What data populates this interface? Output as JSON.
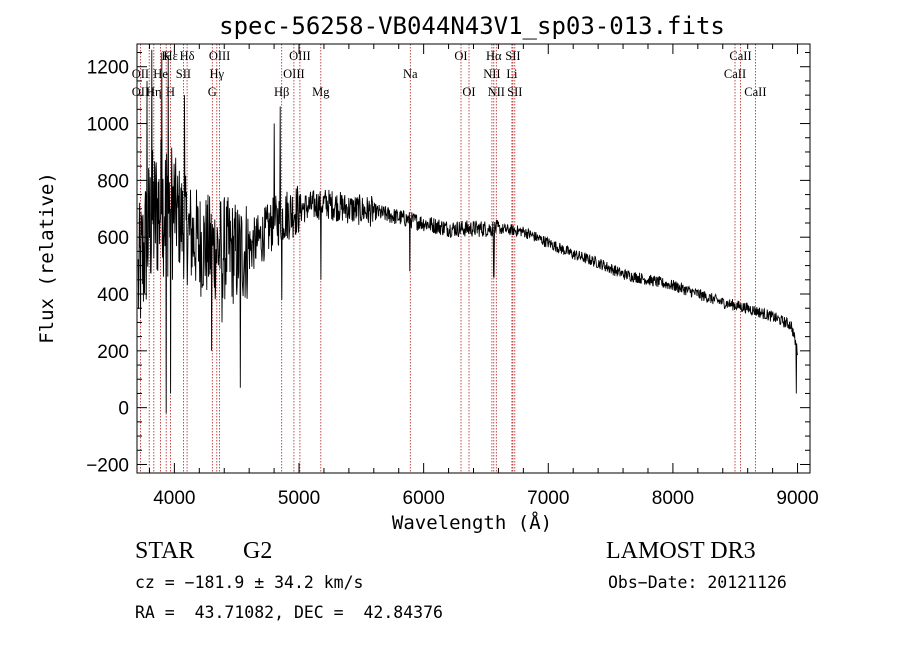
{
  "chart_data": {
    "type": "line",
    "title": "spec-56258-VB044N43V1_sp03-013.fits",
    "xlabel": "Wavelength (Å)",
    "ylabel": "Flux (relative)",
    "xlim": [
      3700,
      9100
    ],
    "ylim": [
      -230,
      1280
    ],
    "xticks": [
      4000,
      5000,
      6000,
      7000,
      8000,
      9000
    ],
    "yticks": [
      -200,
      0,
      200,
      400,
      600,
      800,
      1000,
      1200
    ],
    "series": [
      {
        "name": "spectrum",
        "continuum": {
          "x": [
            3700,
            3800,
            3900,
            4000,
            4100,
            4200,
            4300,
            4400,
            4500,
            4600,
            4700,
            4800,
            4900,
            5000,
            5200,
            5400,
            5600,
            5800,
            6000,
            6200,
            6400,
            6600,
            6800,
            7000,
            7200,
            7400,
            7600,
            7800,
            8000,
            8200,
            8400,
            8600,
            8800,
            8950,
            9000
          ],
          "y": [
            420,
            640,
            720,
            700,
            620,
            580,
            560,
            560,
            540,
            560,
            600,
            650,
            680,
            700,
            720,
            700,
            690,
            670,
            650,
            630,
            630,
            630,
            620,
            580,
            540,
            510,
            470,
            450,
            430,
            400,
            370,
            350,
            320,
            290,
            200
          ]
        },
        "dips": [
          {
            "x": 3934,
            "y": -20
          },
          {
            "x": 3969,
            "y": 50
          },
          {
            "x": 4300,
            "y": 200
          },
          {
            "x": 4383,
            "y": 300
          },
          {
            "x": 4530,
            "y": 70
          },
          {
            "x": 4861,
            "y": 380
          },
          {
            "x": 5175,
            "y": 450
          },
          {
            "x": 5890,
            "y": 480
          },
          {
            "x": 6563,
            "y": 460
          },
          {
            "x": 8990,
            "y": 50
          }
        ],
        "spikes": [
          {
            "x": 3780,
            "y": 1150
          },
          {
            "x": 3820,
            "y": 1260
          },
          {
            "x": 3900,
            "y": 1250
          },
          {
            "x": 3950,
            "y": 1240
          },
          {
            "x": 4080,
            "y": 1100
          },
          {
            "x": 4800,
            "y": 1000
          },
          {
            "x": 4850,
            "y": 1060
          }
        ]
      }
    ],
    "line_labels": [
      {
        "text": "Hε",
        "x": 3970
      },
      {
        "text": "K",
        "x": 3934
      },
      {
        "text": "Hδ",
        "x": 4102
      },
      {
        "text": "OII",
        "x": 3727
      },
      {
        "text": "He",
        "x": 3889
      },
      {
        "text": "SII",
        "x": 4072
      },
      {
        "text": "OII",
        "x": 3727
      },
      {
        "text": "Hη",
        "x": 3835
      },
      {
        "text": "H",
        "x": 3969
      },
      {
        "text": "OIII",
        "x": 4363
      },
      {
        "text": "Hγ",
        "x": 4340
      },
      {
        "text": "G",
        "x": 4304
      },
      {
        "text": "OIII",
        "x": 5007
      },
      {
        "text": "OIII",
        "x": 4959
      },
      {
        "text": "Hβ",
        "x": 4861
      },
      {
        "text": "Mg",
        "x": 5175
      },
      {
        "text": "Na",
        "x": 5893
      },
      {
        "text": "OI",
        "x": 6300
      },
      {
        "text": "OI",
        "x": 6364
      },
      {
        "text": "Hα",
        "x": 6563
      },
      {
        "text": "SII",
        "x": 6716
      },
      {
        "text": "NII",
        "x": 6548
      },
      {
        "text": "Li",
        "x": 6708
      },
      {
        "text": "NII",
        "x": 6583
      },
      {
        "text": "SII",
        "x": 6731
      },
      {
        "text": "CaII",
        "x": 8542
      },
      {
        "text": "CaII",
        "x": 8498
      },
      {
        "text": "CaII",
        "x": 8662
      }
    ],
    "marker_lines": [
      3727,
      3798,
      3835,
      3889,
      3934,
      3969,
      4072,
      4102,
      4304,
      4340,
      4363,
      4861,
      4959,
      5007,
      5175,
      5893,
      6300,
      6364,
      6548,
      6563,
      6583,
      6708,
      6716,
      6731,
      8498,
      8542,
      8662
    ],
    "marker_color": "#b22222",
    "line_color": "#000000"
  },
  "info": {
    "object_class": "STAR",
    "subclass": "G2",
    "survey": "LAMOST DR3",
    "cz": "cz = −181.9 ± 34.2 km/s",
    "obs_date": "Obs−Date: 20121126",
    "coords": "RA =  43.71082, DEC =  42.84376"
  }
}
